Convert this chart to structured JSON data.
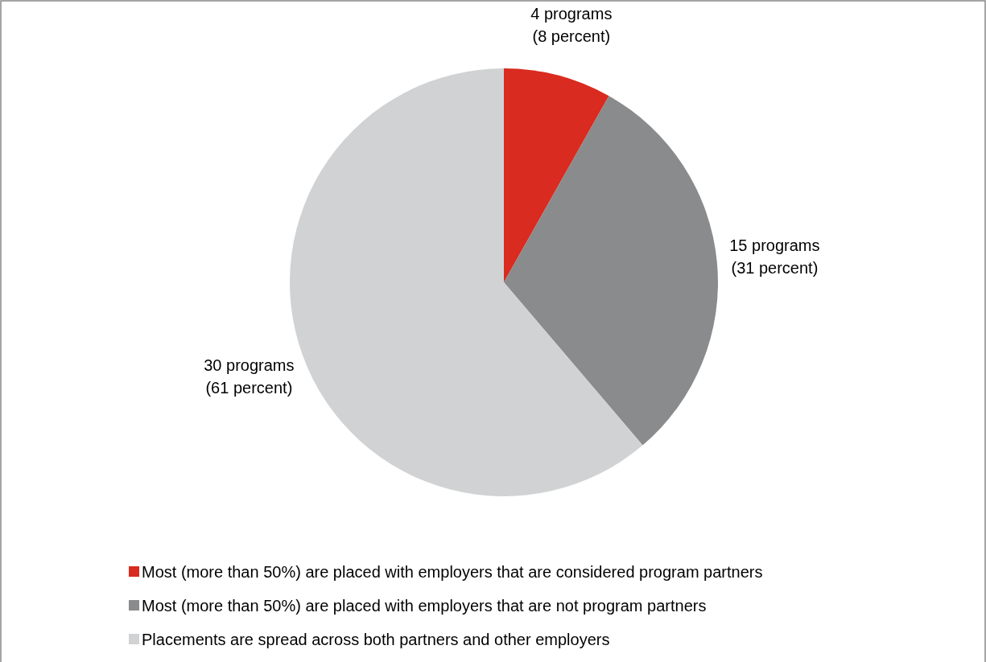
{
  "chart_data": {
    "type": "pie",
    "categories": [
      "Most (more than 50%) are placed with employers that are considered program partners",
      "Most (more than 50%) are placed with employers that are not program partners",
      "Placements are spread across both partners and other employers"
    ],
    "values": [
      4,
      15,
      30
    ],
    "colors": [
      "#d92b1f",
      "#898b8c",
      "#d0d2d3"
    ],
    "value_labels": [
      "4 programs\n(8 percent)",
      "15 programs\n(31 percent)",
      "30 programs\n(61 percent)"
    ],
    "legend": "bottom"
  }
}
